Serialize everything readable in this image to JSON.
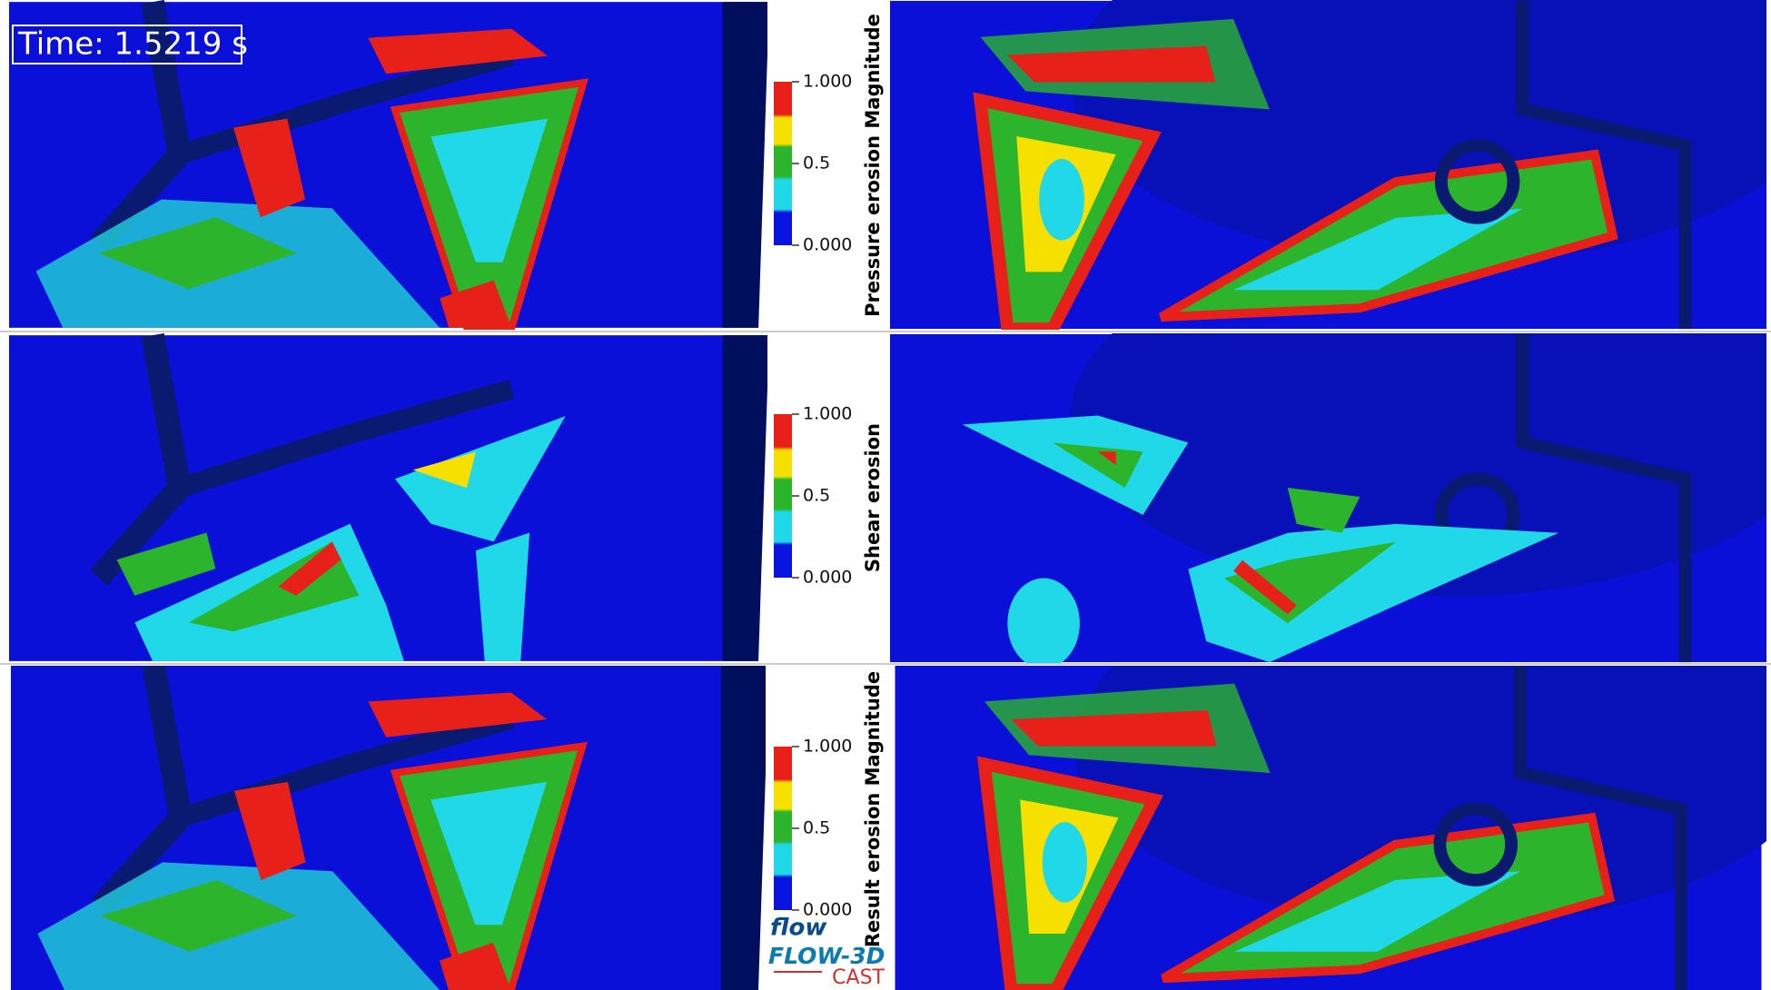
{
  "time_label": "Time: 1.5219 s",
  "colorbars": [
    {
      "title": "Pressure erosion Magnitude",
      "ticks": [
        "1.000",
        "0.5",
        "0.000"
      ]
    },
    {
      "title": "Shear erosion",
      "ticks": [
        "1.000",
        "0.5",
        "0.000"
      ]
    },
    {
      "title": "Result erosion Magnitude",
      "ticks": [
        "1.000",
        "0.5",
        "0.000"
      ]
    }
  ],
  "logo": {
    "mark": "flow",
    "product": "FLOW-3D",
    "edition": "CAST"
  }
}
